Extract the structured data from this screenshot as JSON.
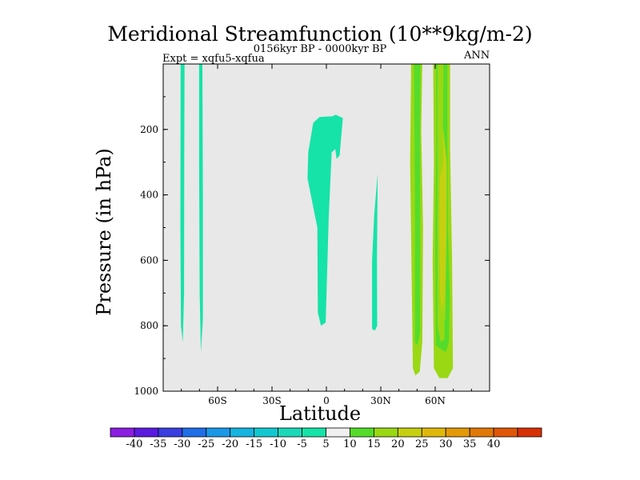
{
  "chart_data": {
    "type": "contour",
    "title": "Meridional Streamfunction (10**9kg/m-2)",
    "subtitle": "0156kyr BP - 0000kyr BP",
    "left_label": "Expt = xqfu5-xqfua",
    "right_label": "ANN",
    "xlabel": "Latitude",
    "ylabel": "Pressure (in hPa)",
    "xlim": [
      -90,
      90
    ],
    "ylim": [
      0,
      1000
    ],
    "y_inverted": true,
    "x_ticks": [
      {
        "value": -60,
        "label": "60S"
      },
      {
        "value": -30,
        "label": "30S"
      },
      {
        "value": 0,
        "label": "0"
      },
      {
        "value": 30,
        "label": "30N"
      },
      {
        "value": 60,
        "label": "60N"
      }
    ],
    "y_ticks": [
      {
        "value": 200,
        "label": "200"
      },
      {
        "value": 400,
        "label": "400"
      },
      {
        "value": 600,
        "label": "600"
      },
      {
        "value": 800,
        "label": "800"
      },
      {
        "value": 1000,
        "label": "1000"
      }
    ],
    "plot_background": "#e8e8e8",
    "colorbar": {
      "labels": [
        "-40",
        "-35",
        "-30",
        "-25",
        "-20",
        "-15",
        "-10",
        "-5",
        "5",
        "10",
        "15",
        "20",
        "25",
        "30",
        "35",
        "40"
      ],
      "colors": [
        "#8a1de0",
        "#5a1be0",
        "#3a3fe0",
        "#1f6ee8",
        "#1a98e8",
        "#15b4e0",
        "#12c8d0",
        "#1ad8b8",
        "#16e3a8",
        "#f0f0f0",
        "#55dc2a",
        "#9ad814",
        "#c6d010",
        "#e0b80c",
        "#e39a08",
        "#e07808",
        "#e05608",
        "#d83006"
      ]
    },
    "regions": [
      {
        "name": "neg-band-a",
        "fill": "#16e3a8",
        "points": [
          [
            -80.4,
            0
          ],
          [
            -78.2,
            0
          ],
          [
            -78.4,
            300
          ],
          [
            -78.5,
            700
          ],
          [
            -79.2,
            850
          ],
          [
            -80.2,
            800
          ],
          [
            -80.5,
            500
          ]
        ]
      },
      {
        "name": "neg-band-b",
        "fill": "#16e3a8",
        "points": [
          [
            -70.2,
            0
          ],
          [
            -68.4,
            0
          ],
          [
            -68.1,
            400
          ],
          [
            -68.1,
            780
          ],
          [
            -69.2,
            880
          ],
          [
            -69.9,
            700
          ],
          [
            -70.2,
            300
          ]
        ]
      },
      {
        "name": "neg-equatorial",
        "fill": "#16e3a8",
        "points": [
          [
            -7.3,
            180
          ],
          [
            -3.8,
            162
          ],
          [
            3.3,
            160
          ],
          [
            5.1,
            155
          ],
          [
            9.1,
            165
          ],
          [
            7.3,
            280
          ],
          [
            5.6,
            290
          ],
          [
            4.9,
            260
          ],
          [
            2.9,
            270
          ],
          [
            1.3,
            470
          ],
          [
            -0.4,
            790
          ],
          [
            -3.0,
            800
          ],
          [
            -4.7,
            760
          ],
          [
            -5.0,
            500
          ],
          [
            -10.4,
            350
          ],
          [
            -10.0,
            270
          ]
        ]
      },
      {
        "name": "neg-30n",
        "fill": "#16e3a8",
        "points": [
          [
            26.4,
            460
          ],
          [
            28.3,
            335
          ],
          [
            27.9,
            600
          ],
          [
            28.0,
            800
          ],
          [
            26.7,
            815
          ],
          [
            25.2,
            810
          ],
          [
            25.2,
            600
          ]
        ]
      },
      {
        "name": "pos-outer",
        "fill": "#9ad814",
        "points": [
          [
            46.7,
            0
          ],
          [
            52.9,
            0
          ],
          [
            52.3,
            200
          ],
          [
            53.3,
            500
          ],
          [
            52.9,
            850
          ],
          [
            51.5,
            940
          ],
          [
            49.1,
            952
          ],
          [
            47.7,
            930
          ],
          [
            46.9,
            600
          ],
          [
            46.2,
            300
          ]
        ]
      },
      {
        "name": "pos-outer-2",
        "fill": "#9ad814",
        "points": [
          [
            58.9,
            0
          ],
          [
            68.2,
            0
          ],
          [
            68.2,
            250
          ],
          [
            69.3,
            600
          ],
          [
            69.8,
            930
          ],
          [
            66.9,
            960
          ],
          [
            62.3,
            960
          ],
          [
            59.3,
            930
          ],
          [
            58.6,
            600
          ],
          [
            59.3,
            300
          ]
        ]
      },
      {
        "name": "pos-inner",
        "fill": "#55dc2a",
        "points": [
          [
            48.3,
            0
          ],
          [
            51.9,
            0
          ],
          [
            51.6,
            200
          ],
          [
            51.7,
            500
          ],
          [
            51.7,
            820
          ],
          [
            50.3,
            860
          ],
          [
            48.8,
            850
          ],
          [
            48.8,
            400
          ]
        ]
      },
      {
        "name": "pos-inner-2",
        "fill": "#55dc2a",
        "points": [
          [
            60.4,
            0
          ],
          [
            66.7,
            0
          ],
          [
            66.7,
            200
          ],
          [
            67.0,
            500
          ],
          [
            68.0,
            700
          ],
          [
            67.6,
            850
          ],
          [
            66.0,
            880
          ],
          [
            64.0,
            875
          ],
          [
            60.3,
            860
          ],
          [
            60.0,
            500
          ],
          [
            60.7,
            200
          ]
        ]
      },
      {
        "name": "pos-core",
        "fill": "#c6d010",
        "points": [
          [
            62.1,
            260
          ],
          [
            64.5,
            200
          ],
          [
            66.3,
            300
          ],
          [
            66.3,
            500
          ],
          [
            65.4,
            780
          ],
          [
            64.4,
            800
          ],
          [
            62.8,
            780
          ],
          [
            61.7,
            500
          ]
        ]
      },
      {
        "name": "pos-mid",
        "fill": "#9ad814",
        "points": [
          [
            61.3,
            0
          ],
          [
            64.6,
            0
          ],
          [
            64.3,
            200
          ],
          [
            64.6,
            500
          ],
          [
            65.1,
            840
          ],
          [
            63.1,
            850
          ],
          [
            61.3,
            800
          ],
          [
            61.3,
            400
          ]
        ]
      },
      {
        "name": "pos-core-2",
        "fill": "#c6d010",
        "points": [
          [
            62.6,
            350
          ],
          [
            64.2,
            300
          ],
          [
            64.8,
            500
          ],
          [
            64.6,
            720
          ],
          [
            63.6,
            760
          ],
          [
            62.7,
            700
          ],
          [
            62.2,
            500
          ]
        ]
      }
    ]
  }
}
